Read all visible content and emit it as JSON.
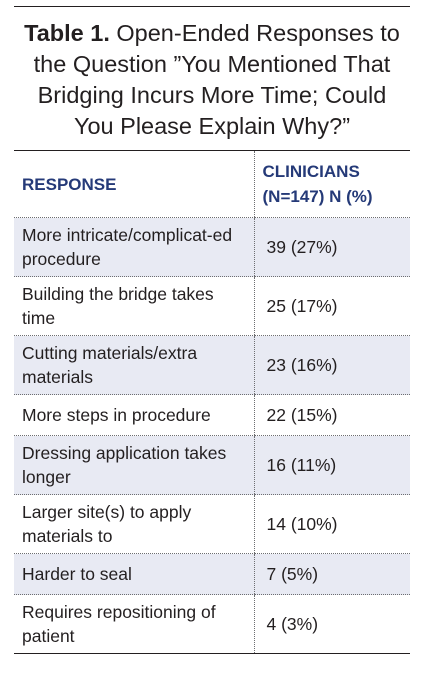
{
  "caption": {
    "label": "Table 1.",
    "text": " Open-Ended Responses to the Question ”You Mentioned That Bridging Incurs More Time; Could You Please Explain Why?”"
  },
  "header": {
    "response": "RESPONSE",
    "clinicians": "CLINICIANS (N=147) N (%)"
  },
  "rows": [
    {
      "response": "More intricate/complicat-ed procedure",
      "count": "39 (27%)"
    },
    {
      "response": "Building the bridge takes time",
      "count": "25 (17%)"
    },
    {
      "response": "Cutting materials/extra materials",
      "count": "23 (16%)"
    },
    {
      "response": "More steps in procedure",
      "count": "22 (15%)"
    },
    {
      "response": "Dressing application takes longer",
      "count": "16 (11%)"
    },
    {
      "response": "Larger site(s) to apply materials to",
      "count": "14 (10%)"
    },
    {
      "response": "Harder to seal",
      "count": "7 (5%)"
    },
    {
      "response": "Requires repositioning of patient",
      "count": "4 (3%)"
    }
  ],
  "colors": {
    "header_text": "#253a78",
    "alt_row_fill": "#e8eaf3",
    "body_text": "#231f20"
  }
}
